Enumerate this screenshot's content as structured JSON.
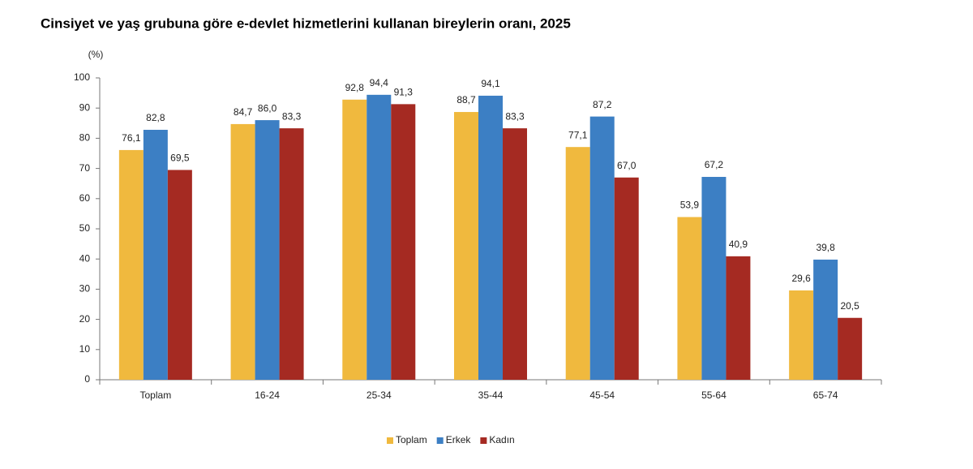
{
  "chart_data": {
    "type": "bar",
    "title": "Cinsiyet ve yaş grubuna göre e-devlet hizmetlerini kullanan bireylerin oranı, 2025",
    "y_label": "(%)",
    "categories": [
      "Toplam",
      "16-24",
      "25-34",
      "35-44",
      "45-54",
      "55-64",
      "65-74"
    ],
    "series": [
      {
        "name": "Toplam",
        "color": "#f0b93e",
        "values": [
          76.1,
          84.7,
          92.8,
          88.7,
          77.1,
          53.9,
          29.6
        ],
        "value_labels": [
          "76,1",
          "84,7",
          "92,8",
          "88,7",
          "77,1",
          "53,9",
          "29,6"
        ]
      },
      {
        "name": "Erkek",
        "color": "#3c7fc4",
        "values": [
          82.8,
          86.0,
          94.4,
          94.1,
          87.2,
          67.2,
          39.8
        ],
        "value_labels": [
          "82,8",
          "86,0",
          "94,4",
          "94,1",
          "87,2",
          "67,2",
          "39,8"
        ]
      },
      {
        "name": "Kadın",
        "color": "#a52a22",
        "values": [
          69.5,
          83.3,
          91.3,
          83.3,
          67.0,
          40.9,
          20.5
        ],
        "value_labels": [
          "69,5",
          "83,3",
          "91,3",
          "83,3",
          "67,0",
          "40,9",
          "20,5"
        ]
      }
    ],
    "ylim": [
      0,
      100
    ],
    "yticks": [
      0,
      10,
      20,
      30,
      40,
      50,
      60,
      70,
      80,
      90,
      100
    ],
    "grid": false,
    "legend": "bottom"
  }
}
